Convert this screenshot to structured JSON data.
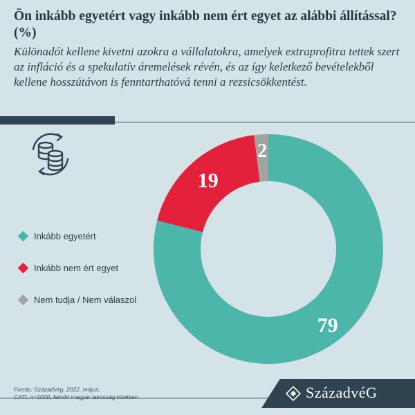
{
  "header": {
    "title": "Ön inkább egyetért vagy inkább nem ért egyet az alábbi állítással? (%)",
    "subtitle": "Különadót kellene kivetni azokra a vállalatokra, amelyek extraprofitra tettek szert az infláció és a spekulatív áremelések révén, és az így keletkező bevételekből kellene hosszútávon is fenntarthatóvá tenni a rezsicsökkentést."
  },
  "legend": {
    "items": [
      {
        "label": "Inkább egyetért",
        "color": "#4db6aa"
      },
      {
        "label": "Inkább nem ért egyet",
        "color": "#e3213b"
      },
      {
        "label": "Nem tudja / Nem válaszol",
        "color": "#a3a3a3"
      }
    ]
  },
  "footer": {
    "source_line1": "Forrás: Századvég, 2022. május,",
    "source_line2": "CATI, n=1000, felnőtt magyar lakosság körében",
    "brand": "SzázadvéG"
  },
  "icons": {
    "header_icon": "coins-cycle-icon",
    "brand_icon": "brand-diamond-icon"
  },
  "chart_data": {
    "type": "pie",
    "donut": true,
    "categories": [
      "Inkább egyetért",
      "Inkább nem ért egyet",
      "Nem tudja / Nem válaszol"
    ],
    "values": [
      79,
      19,
      2
    ],
    "colors": [
      "#4db6aa",
      "#e3213b",
      "#a3a3a3"
    ],
    "data_labels": [
      "79",
      "19",
      "2"
    ],
    "start": "top",
    "direction": "clockwise",
    "legend_position": "left"
  }
}
